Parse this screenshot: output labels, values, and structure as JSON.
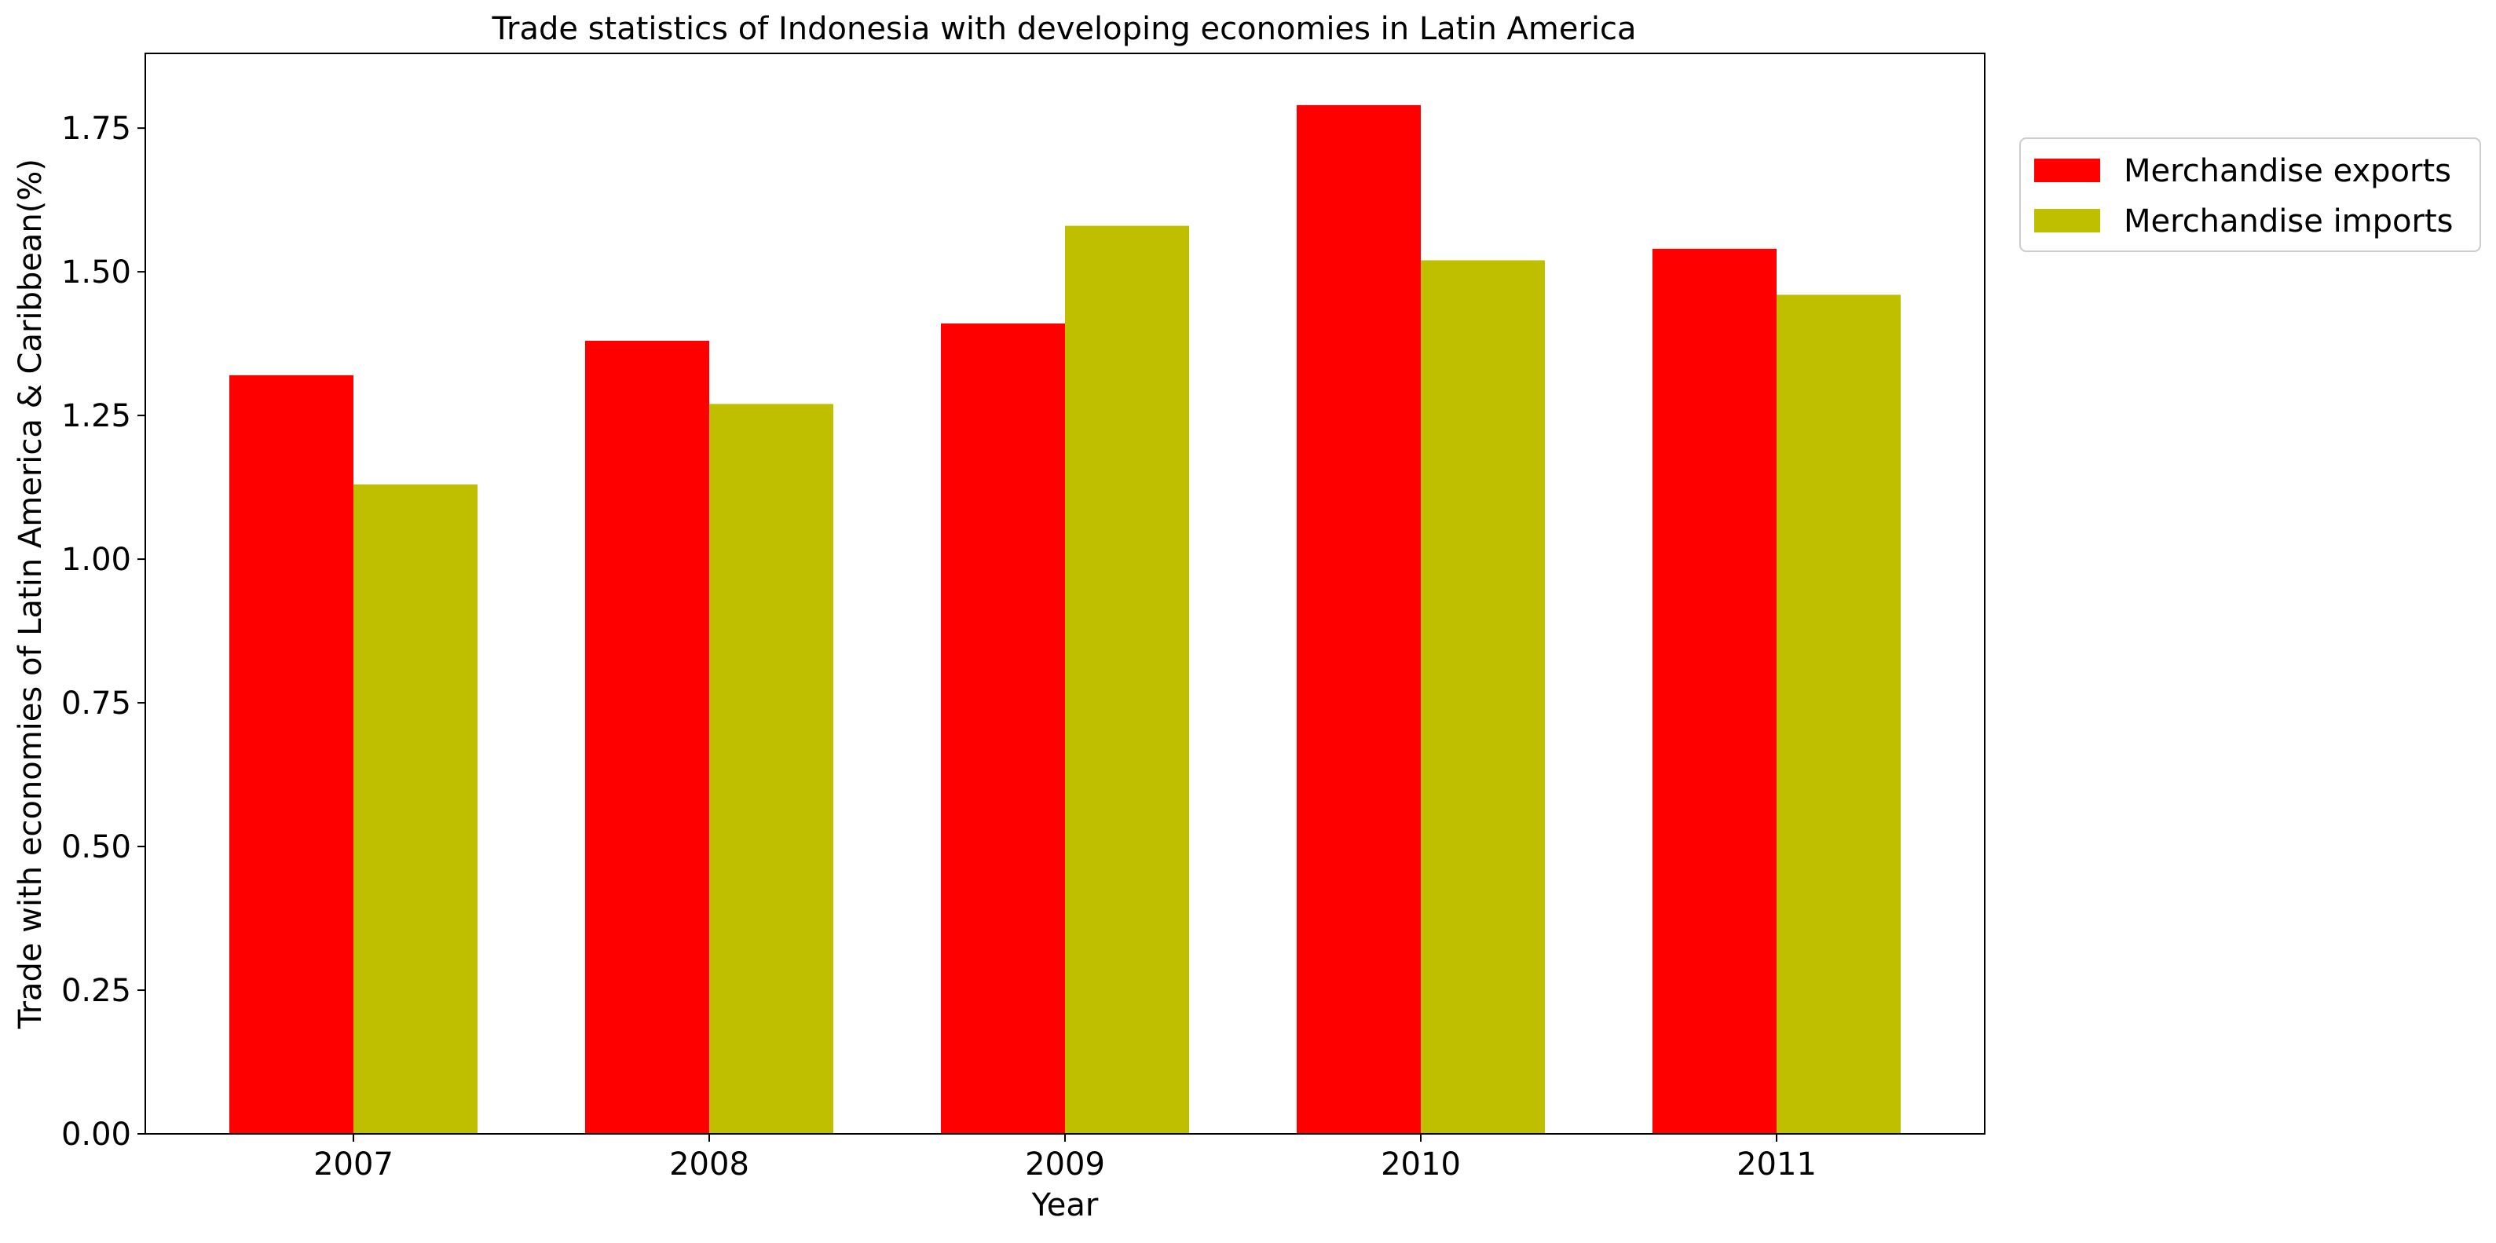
{
  "chart_data": {
    "type": "bar",
    "title": "Trade statistics of Indonesia with developing economies in Latin America",
    "xlabel": "Year",
    "ylabel": "Trade with economies of Latin America & Caribbean(%)",
    "categories": [
      "2007",
      "2008",
      "2009",
      "2010",
      "2011"
    ],
    "series": [
      {
        "name": "Merchandise exports",
        "color": "#ff0000",
        "values": [
          1.32,
          1.38,
          1.41,
          1.79,
          1.54
        ]
      },
      {
        "name": "Merchandise imports",
        "color": "#bfbf00",
        "values": [
          1.13,
          1.27,
          1.58,
          1.52,
          1.46
        ]
      }
    ],
    "ylim": [
      0,
      1.88
    ],
    "yticks": [
      "0.00",
      "0.25",
      "0.50",
      "0.75",
      "1.00",
      "1.25",
      "1.50",
      "1.75"
    ],
    "grid": false,
    "legend_position": "outside-top-right"
  }
}
